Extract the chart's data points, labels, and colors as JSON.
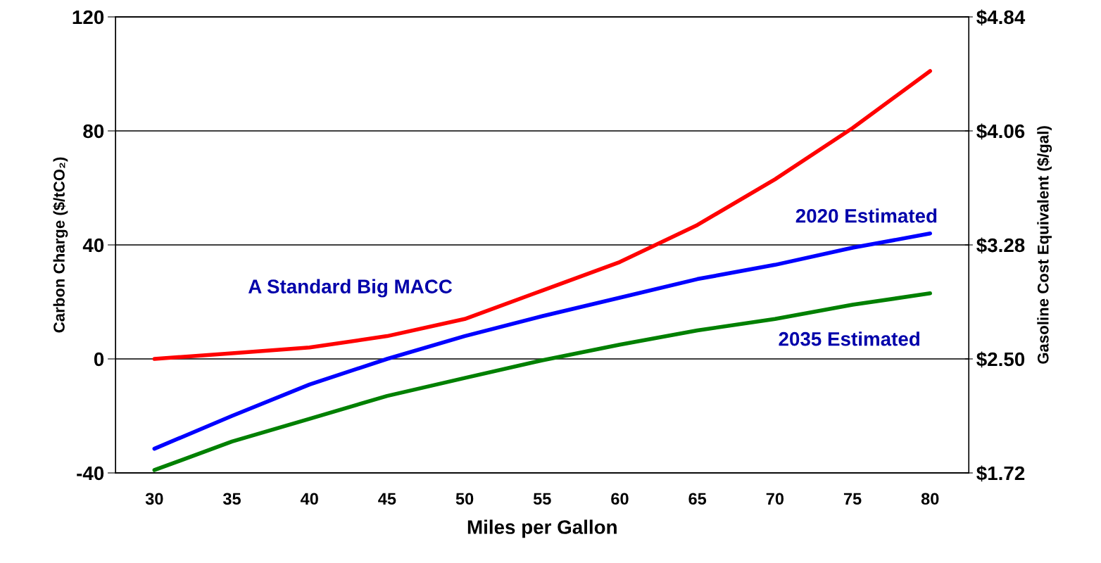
{
  "chart_data": {
    "type": "line",
    "xlabel": "Miles per Gallon",
    "ylabel": "Carbon Charge ($/tCO₂)",
    "y2label": "Gasoline Cost Equivalent ($/gal)",
    "categories": [
      "30",
      "35",
      "40",
      "45",
      "50",
      "55",
      "60",
      "65",
      "70",
      "75",
      "80"
    ],
    "series": [
      {
        "color": "#ff0000",
        "values": [
          0,
          2,
          4,
          8,
          14,
          24,
          34,
          47,
          63,
          81,
          101
        ]
      },
      {
        "color": "#0000ff",
        "values": [
          -31.5,
          -20,
          -9,
          0,
          8,
          15,
          21.5,
          28,
          33,
          39,
          44
        ]
      },
      {
        "color": "#008000",
        "values": [
          -39,
          -29,
          -21,
          -13,
          -6.7,
          -0.5,
          5,
          10,
          14,
          19,
          23
        ]
      }
    ],
    "ylim": [
      -40,
      120
    ],
    "yticks": [
      -40,
      0,
      40,
      80,
      120
    ],
    "y2lim": [
      1.72,
      4.84
    ],
    "y2ticks": [
      {
        "value": 1.72,
        "label": "$1.72"
      },
      {
        "value": 2.5,
        "label": "$2.50"
      },
      {
        "value": 3.28,
        "label": "$3.28"
      },
      {
        "value": 4.06,
        "label": "$4.06"
      },
      {
        "value": 4.84,
        "label": "$4.84"
      }
    ],
    "annotations": [
      "2020 Estimated",
      "2035 Estimated",
      "A Standard Big MACC"
    ],
    "grid": "y",
    "legend": false,
    "marker": "none",
    "line_style": "solid"
  }
}
